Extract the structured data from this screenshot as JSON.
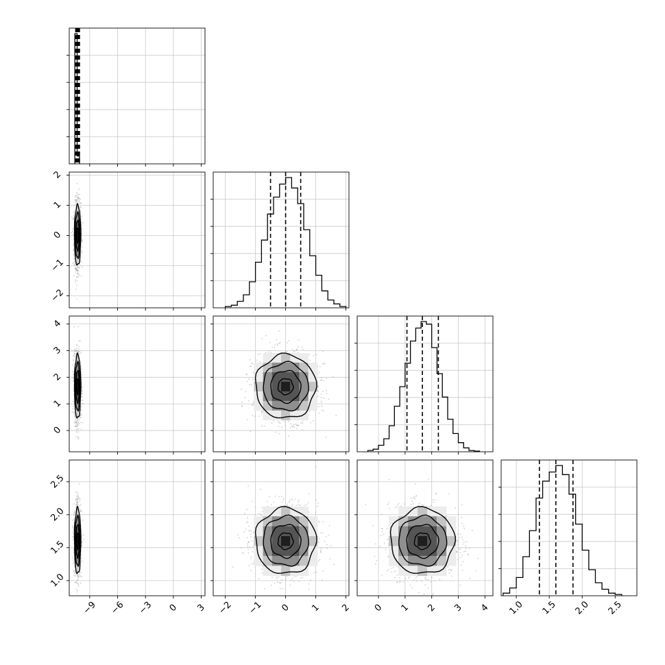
{
  "figure": {
    "type": "corner-plot",
    "colors": {
      "frame": "#000000",
      "grid": "#c8c8c8",
      "hist": "#000000",
      "scatter": "#a8a8a8",
      "density_dark": "#222222"
    }
  },
  "chart_data": {
    "type": "corner",
    "parameters": [
      {
        "index": 0,
        "range": [
          -11.2,
          3.4
        ],
        "ticks": [
          -9,
          -6,
          -3,
          0,
          3
        ],
        "tick_labels": [
          "−9",
          "−6",
          "−3",
          "0",
          "3"
        ],
        "center": -10.3,
        "spread": 0.17,
        "quantiles": [
          -10.45,
          -10.3,
          -10.15
        ]
      },
      {
        "index": 1,
        "range": [
          -2.4,
          2.1
        ],
        "ticks": [
          -2,
          -1,
          0,
          1,
          2
        ],
        "tick_labels": [
          "−2",
          "−1",
          "0",
          "1",
          "2"
        ],
        "center": 0.0,
        "spread": 0.5,
        "quantiles": [
          -0.5,
          0.0,
          0.5
        ]
      },
      {
        "index": 2,
        "range": [
          -0.8,
          4.3
        ],
        "ticks": [
          0,
          1,
          2,
          3,
          4
        ],
        "tick_labels": [
          "0",
          "1",
          "2",
          "3",
          "4"
        ],
        "center": 1.65,
        "spread": 0.6,
        "quantiles": [
          1.07,
          1.65,
          2.25
        ]
      },
      {
        "index": 3,
        "range": [
          0.77,
          2.83
        ],
        "ticks": [
          1.0,
          1.5,
          2.0,
          2.5
        ],
        "tick_labels": [
          "1.0",
          "1.5",
          "2.0",
          "2.5"
        ],
        "center": 1.6,
        "spread": 0.25,
        "quantiles": [
          1.35,
          1.6,
          1.86
        ]
      }
    ],
    "histograms": [
      {
        "param": 0,
        "edges": [
          -10.6,
          -10.35,
          -10.1
        ],
        "counts": [
          1.0,
          0.06
        ]
      },
      {
        "param": 1,
        "edges": [
          -2.0,
          -1.8,
          -1.6,
          -1.4,
          -1.2,
          -1.0,
          -0.8,
          -0.6,
          -0.4,
          -0.2,
          0.0,
          0.2,
          0.4,
          0.6,
          0.8,
          1.0,
          1.2,
          1.4,
          1.6,
          1.8,
          2.0
        ],
        "counts": [
          0.01,
          0.02,
          0.05,
          0.1,
          0.2,
          0.35,
          0.52,
          0.72,
          0.85,
          0.95,
          1.0,
          0.92,
          0.8,
          0.6,
          0.4,
          0.25,
          0.13,
          0.06,
          0.03,
          0.01
        ]
      },
      {
        "param": 2,
        "edges": [
          -0.4,
          -0.2,
          0.0,
          0.2,
          0.4,
          0.6,
          0.8,
          1.0,
          1.2,
          1.4,
          1.6,
          1.8,
          2.0,
          2.2,
          2.4,
          2.6,
          2.8,
          3.0,
          3.2,
          3.4,
          3.6,
          3.8
        ],
        "counts": [
          0.01,
          0.02,
          0.05,
          0.1,
          0.2,
          0.35,
          0.5,
          0.68,
          0.85,
          0.95,
          1.0,
          0.98,
          0.8,
          0.6,
          0.42,
          0.25,
          0.14,
          0.07,
          0.03,
          0.01,
          0.005
        ]
      },
      {
        "param": 3,
        "edges": [
          0.8,
          0.9,
          1.0,
          1.1,
          1.2,
          1.3,
          1.4,
          1.5,
          1.6,
          1.7,
          1.8,
          1.9,
          2.0,
          2.1,
          2.2,
          2.3,
          2.4,
          2.5,
          2.6
        ],
        "counts": [
          0.02,
          0.06,
          0.14,
          0.3,
          0.5,
          0.75,
          0.88,
          0.95,
          1.0,
          0.93,
          0.78,
          0.55,
          0.35,
          0.2,
          0.1,
          0.05,
          0.02,
          0.01
        ]
      }
    ],
    "contour_levels": [
      0.5,
      1.0,
      1.5,
      2.0
    ],
    "notes_visible": "No title or axis labels are printed; ticks only."
  }
}
